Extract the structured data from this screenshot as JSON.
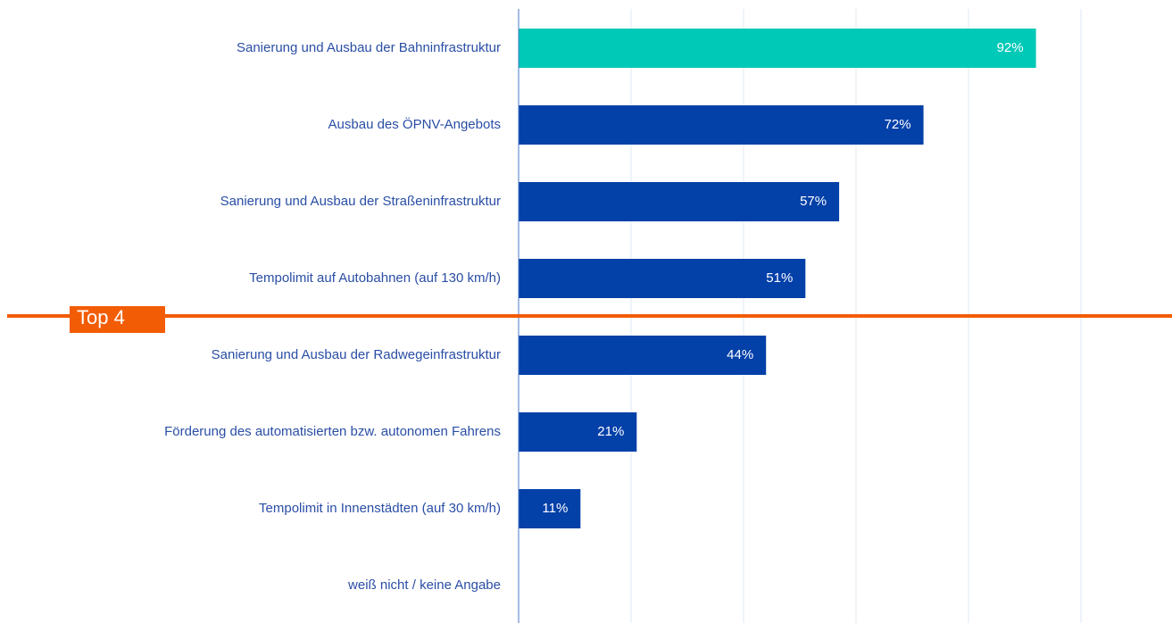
{
  "chart_data": {
    "type": "hbar",
    "categories": [
      "Sanierung und Ausbau der Bahninfrastruktur",
      "Ausbau des ÖPNV-Angebots",
      "Sanierung und Ausbau der Straßeninfrastruktur",
      "Tempolimit auf Autobahnen (auf 130 km/h)",
      "Sanierung und Ausbau der Radwegeinfrastruktur",
      "Förderung des automatisierten bzw. autonomen Fahrens",
      "Tempolimit in Innenstädten (auf 30 km/h)",
      "weiß nicht / keine Angabe"
    ],
    "values": [
      92,
      72,
      57,
      51,
      44,
      21,
      11,
      0
    ],
    "value_labels": [
      "92%",
      "72%",
      "57%",
      "51%",
      "44%",
      "21%",
      "11%",
      null
    ],
    "colors": [
      "#00c9b7",
      "#0340a8",
      "#0340a8",
      "#0340a8",
      "#0340a8",
      "#0340a8",
      "#0340a8",
      "#0340a8"
    ],
    "xlim": [
      0,
      100
    ],
    "xticks": [
      0,
      20,
      40,
      60,
      80,
      100
    ],
    "grid": true,
    "annotation": "Top 4",
    "annotation_color": "#f25c05"
  }
}
